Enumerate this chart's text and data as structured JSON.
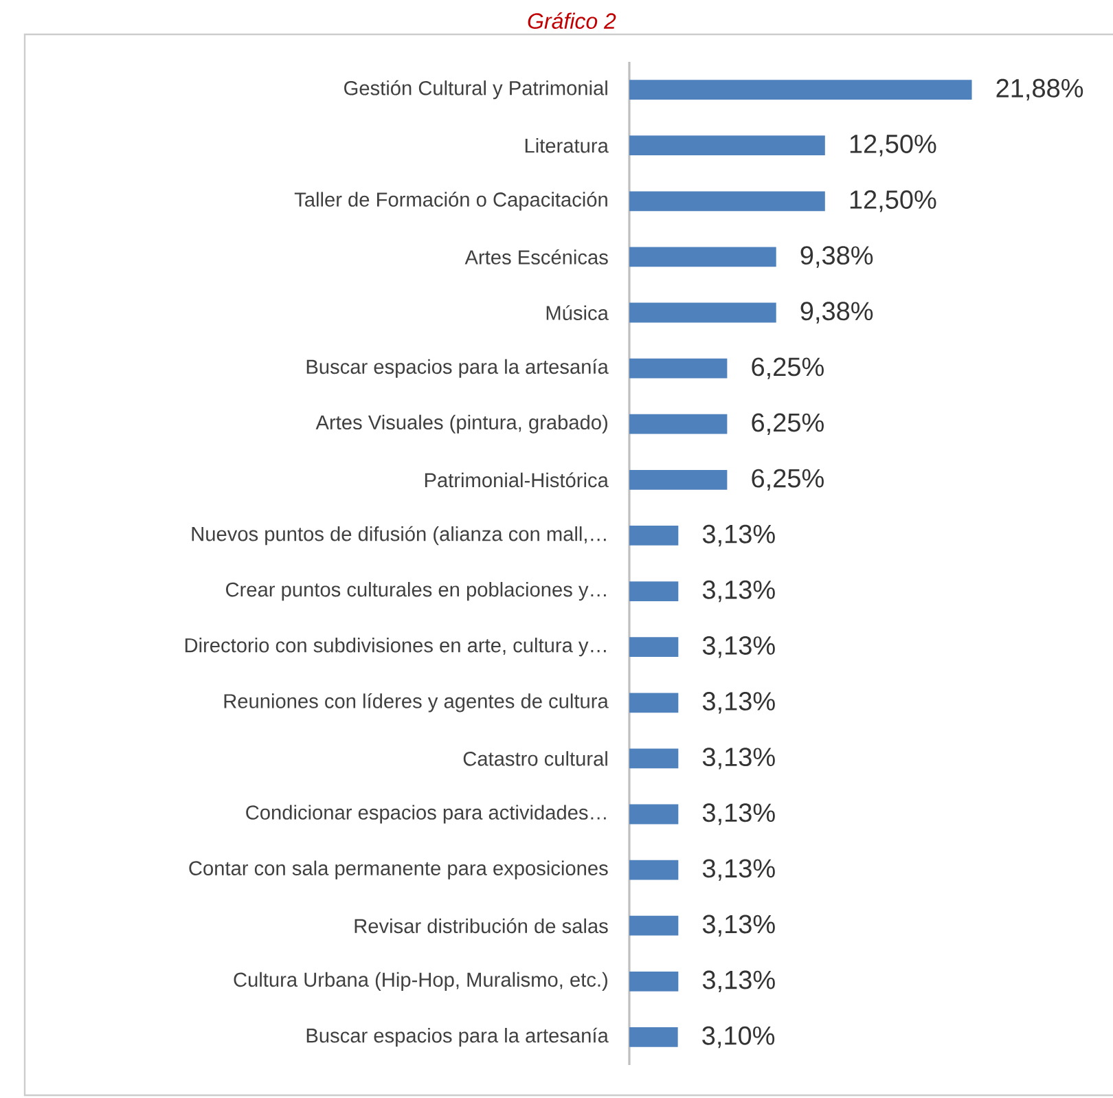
{
  "chart_data": {
    "type": "bar",
    "orientation": "horizontal",
    "title": "Gráfico 2",
    "categories": [
      "Gestión Cultural y Patrimonial",
      "Literatura",
      "Taller de Formación o Capacitación",
      "Artes Escénicas",
      "Música",
      "Buscar espacios para la artesanía",
      "Artes Visuales (pintura, grabado)",
      "Patrimonial-Histórica",
      "Nuevos puntos de difusión (alianza con mall,…",
      "Crear puntos culturales en poblaciones y…",
      "Directorio con subdivisiones en arte, cultura y…",
      "Reuniones con líderes y agentes de cultura",
      "Catastro cultural",
      "Condicionar espacios para actividades…",
      "Contar con sala permanente para exposiciones",
      "Revisar distribución de salas",
      "Cultura Urbana (Hip-Hop, Muralismo, etc.)",
      "Buscar espacios para la artesanía"
    ],
    "values": [
      21.88,
      12.5,
      12.5,
      9.38,
      9.38,
      6.25,
      6.25,
      6.25,
      3.13,
      3.13,
      3.13,
      3.13,
      3.13,
      3.13,
      3.13,
      3.13,
      3.13,
      3.1
    ],
    "value_labels": [
      "21,88%",
      "12,50%",
      "12,50%",
      "9,38%",
      "9,38%",
      "6,25%",
      "6,25%",
      "6,25%",
      "3,13%",
      "3,13%",
      "3,13%",
      "3,13%",
      "3,13%",
      "3,13%",
      "3,13%",
      "3,13%",
      "3,13%",
      "3,10%"
    ],
    "color": "#4f81bd"
  }
}
